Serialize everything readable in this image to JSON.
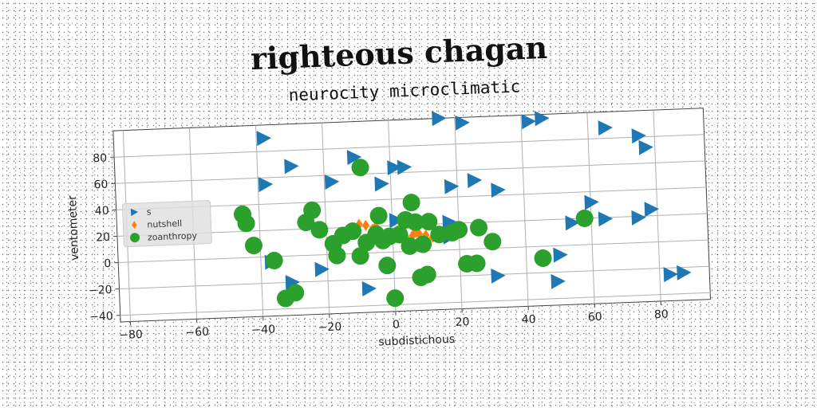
{
  "chart_data": {
    "type": "scatter",
    "title": "righteous chagan",
    "subtitle": "neurocity microclimatic",
    "xlabel": "subdistichous",
    "ylabel": "ventometer",
    "xlim": [
      -83,
      95
    ],
    "ylim": [
      -45,
      100
    ],
    "xticks": [
      -80,
      -60,
      -40,
      -20,
      0,
      20,
      40,
      60,
      80
    ],
    "yticks": [
      -40,
      -20,
      0,
      20,
      40,
      60,
      80
    ],
    "grid": true,
    "legend_position": "center-left",
    "series": [
      {
        "name": "s",
        "marker": "triangle-right",
        "color": "#1f77b4",
        "points": [
          [
            -38,
            90
          ],
          [
            -30,
            68
          ],
          [
            -38,
            55
          ],
          [
            -11,
            73
          ],
          [
            -18,
            55
          ],
          [
            -3,
            52
          ],
          [
            1,
            64
          ],
          [
            4,
            64
          ],
          [
            15,
            100
          ],
          [
            22,
            96
          ],
          [
            42,
            95
          ],
          [
            46,
            97
          ],
          [
            65,
            88
          ],
          [
            75,
            81
          ],
          [
            77,
            72
          ],
          [
            18,
            48
          ],
          [
            25,
            52
          ],
          [
            32,
            44
          ],
          [
            60,
            32
          ],
          [
            54,
            17
          ],
          [
            64,
            19
          ],
          [
            74,
            19
          ],
          [
            78,
            25
          ],
          [
            17,
            21
          ],
          [
            17,
            10
          ],
          [
            1,
            24
          ],
          [
            -37,
            -4
          ],
          [
            -22,
            -11
          ],
          [
            -31,
            -20
          ],
          [
            -8,
            -27
          ],
          [
            31,
            -21
          ],
          [
            49,
            -27
          ],
          [
            50,
            -7
          ],
          [
            83,
            -25
          ],
          [
            87,
            -24
          ]
        ]
      },
      {
        "name": "nutshell",
        "marker": "diamond",
        "color": "#ff7f0e",
        "points": [
          [
            -10,
            22
          ],
          [
            -8,
            21
          ],
          [
            -6,
            18
          ],
          [
            -4,
            15
          ],
          [
            -2,
            13
          ],
          [
            0,
            12
          ],
          [
            2,
            11
          ],
          [
            4,
            11
          ],
          [
            6,
            12
          ],
          [
            8,
            13
          ],
          [
            10,
            12
          ],
          [
            12,
            10
          ],
          [
            -5,
            20
          ],
          [
            3,
            16
          ],
          [
            7,
            14
          ]
        ]
      },
      {
        "name": "zoanthropy",
        "marker": "circle",
        "color": "#2ca02c",
        "points": [
          [
            -45,
            33
          ],
          [
            -44,
            26
          ],
          [
            -42,
            9
          ],
          [
            -36,
            -3
          ],
          [
            -33,
            -32
          ],
          [
            -30,
            -28
          ],
          [
            -26,
            25
          ],
          [
            -24,
            34
          ],
          [
            -22,
            19
          ],
          [
            -18,
            8
          ],
          [
            -17,
            -1
          ],
          [
            -15,
            14
          ],
          [
            -12,
            17
          ],
          [
            -10,
            -2
          ],
          [
            -9,
            65
          ],
          [
            -8,
            8
          ],
          [
            -5,
            14
          ],
          [
            -4,
            28
          ],
          [
            -3,
            9
          ],
          [
            -2,
            -10
          ],
          [
            -1,
            12
          ],
          [
            0,
            -35
          ],
          [
            2,
            13
          ],
          [
            4,
            24
          ],
          [
            5,
            4
          ],
          [
            6,
            37
          ],
          [
            7,
            22
          ],
          [
            8,
            -20
          ],
          [
            9,
            5
          ],
          [
            10,
            -18
          ],
          [
            11,
            22
          ],
          [
            14,
            12
          ],
          [
            18,
            13
          ],
          [
            20,
            15
          ],
          [
            22,
            -11
          ],
          [
            25,
            -11
          ],
          [
            26,
            16
          ],
          [
            30,
            5
          ],
          [
            45,
            -9
          ],
          [
            58,
            20
          ]
        ]
      }
    ]
  }
}
